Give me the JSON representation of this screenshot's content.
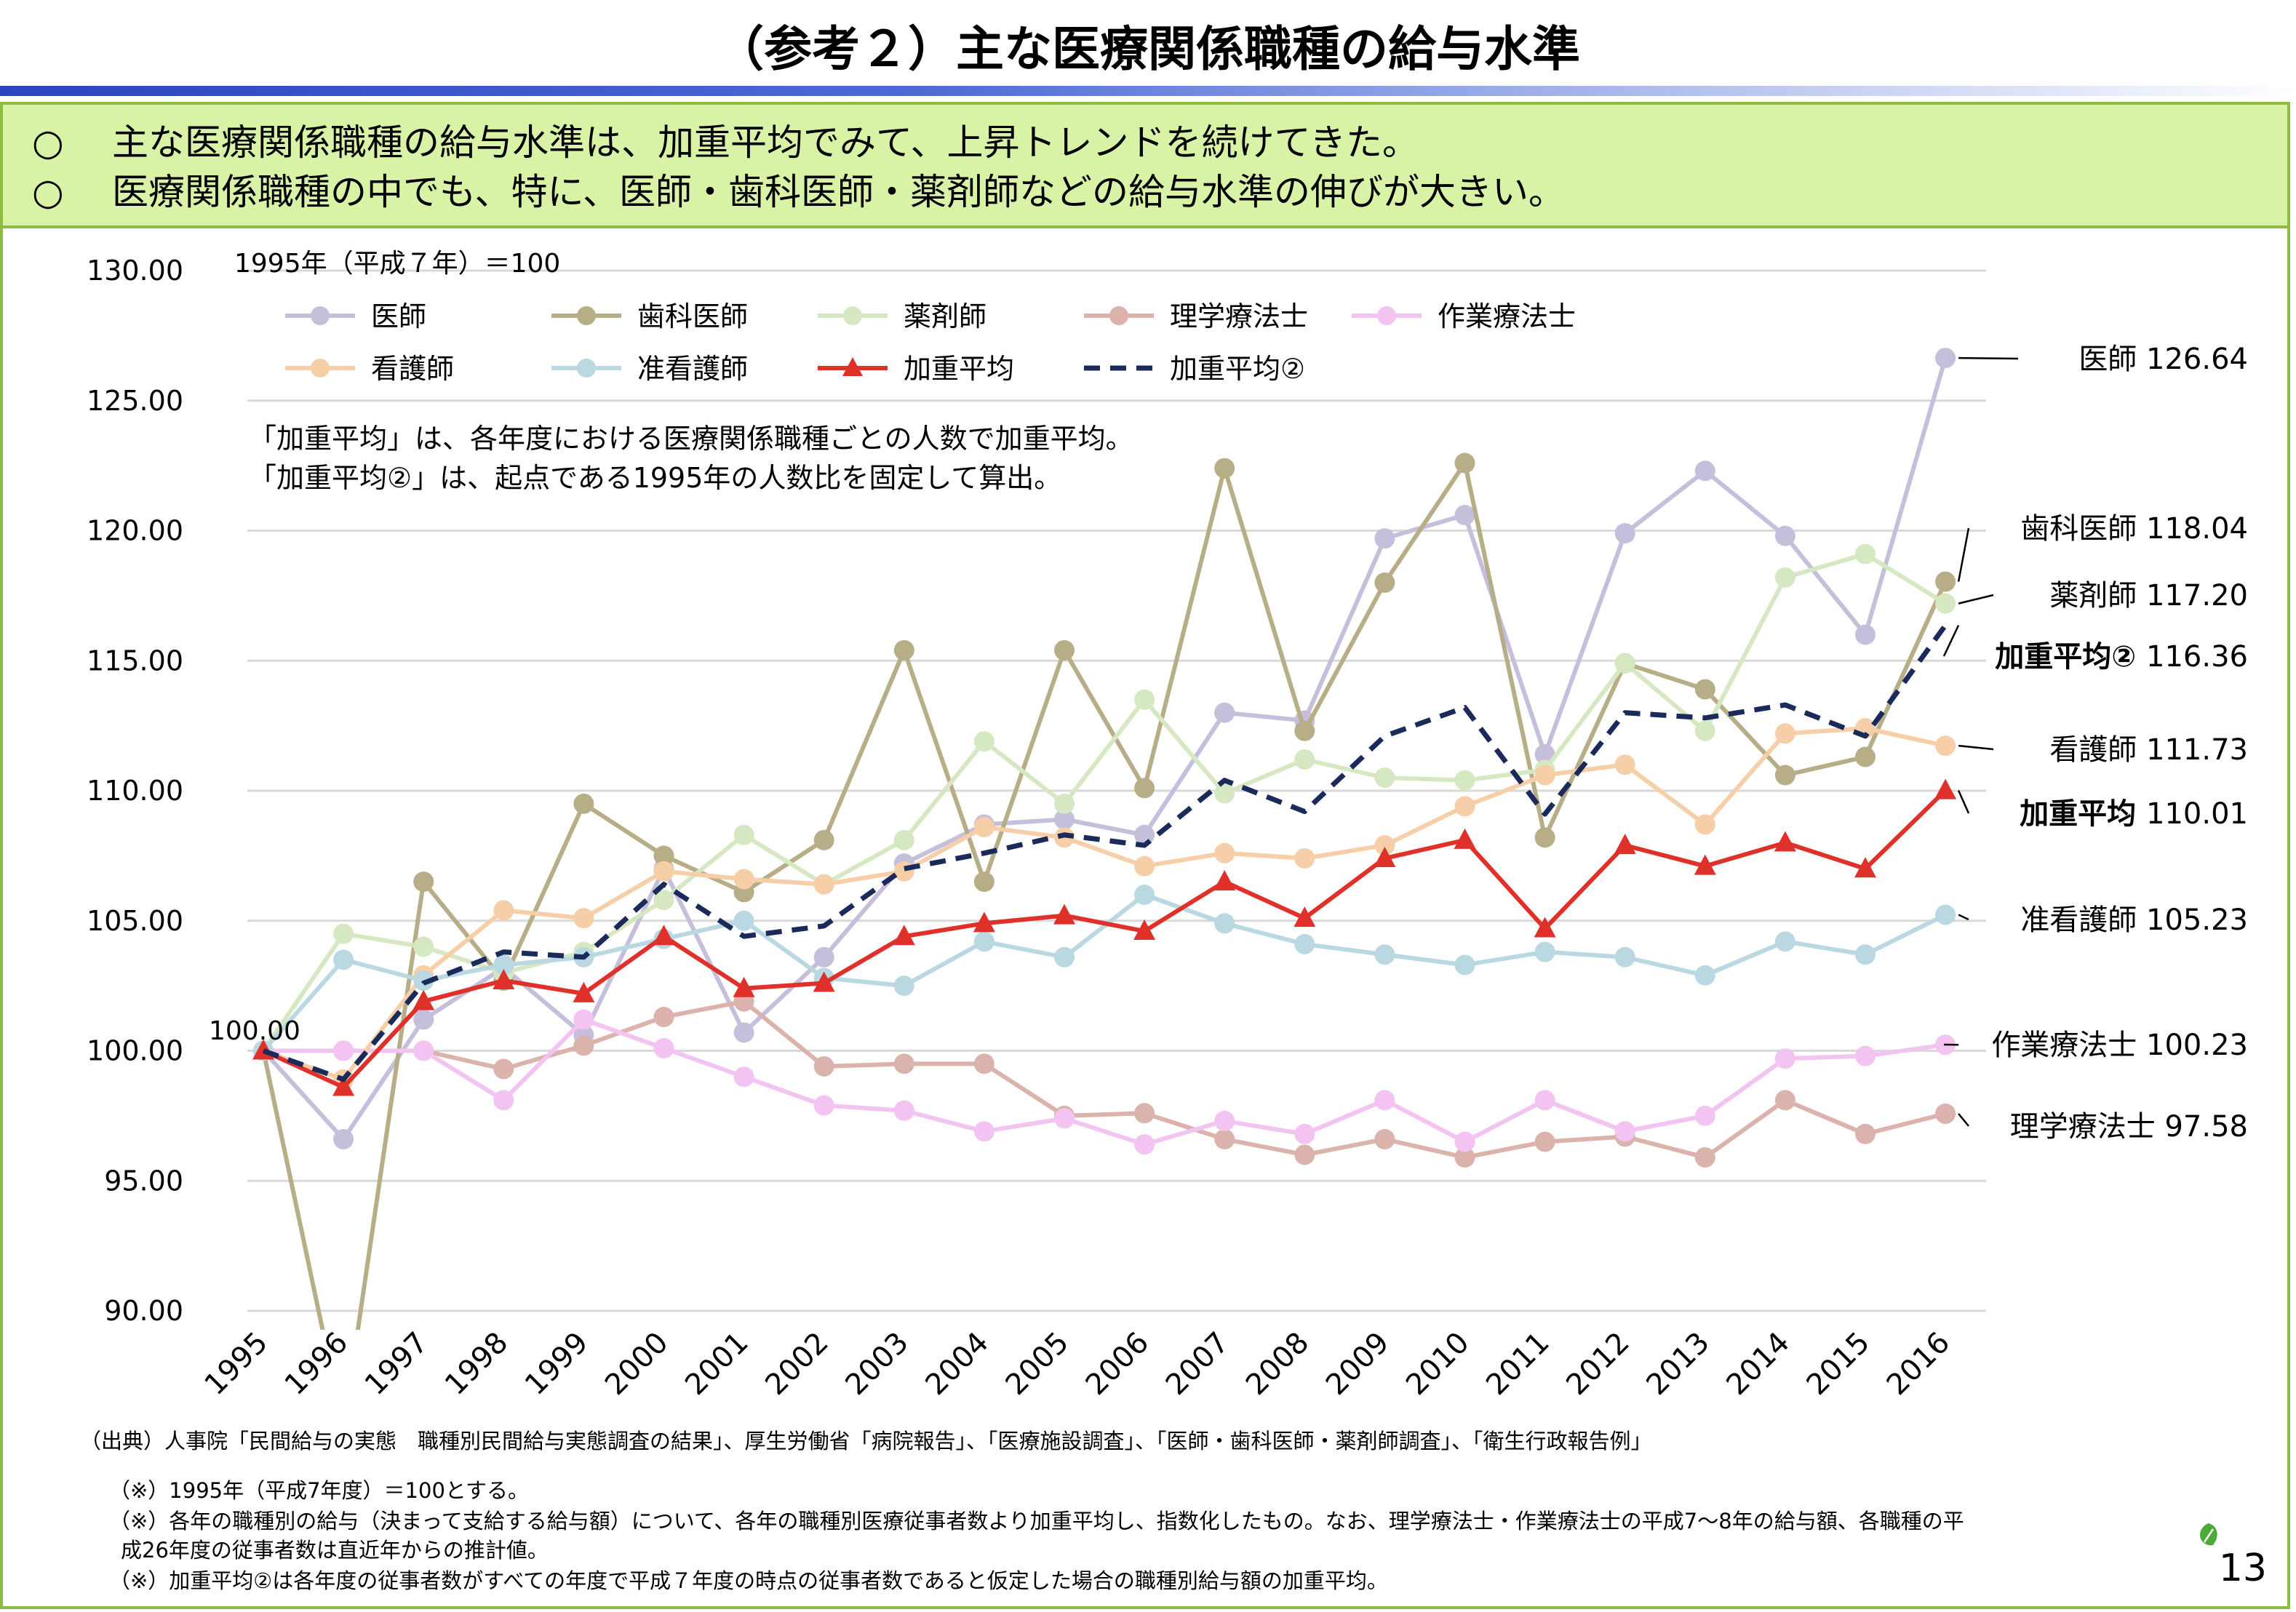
{
  "page": {
    "title": "（参考２）主な医療関係職種の給与水準",
    "bullets": [
      "主な医療関係職種の給与水準は、加重平均でみて、上昇トレンドを続けてきた。",
      "医療関係職種の中でも、特に、医師・歯科医師・薬剤師などの給与水準の伸びが大きい。"
    ],
    "bullet_mark": "○",
    "source": "（出典）人事院「民間給与の実態　職種別民間給与実態調査の結果」、厚生労働省「病院報告」、「医療施設調査」、「医師・歯科医師・薬剤師調査」、「衛生行政報告例」",
    "notes": [
      "（※）1995年（平成7年度）＝100とする。",
      "（※）各年の職種別の給与（決まって支給する給与額）について、各年の職種別医療従事者数より加重平均し、指数化したもの。なお、理学療法士・作業療法士の平成7～8年の給与額、各職種の平",
      "成26年度の従事者数は直近年からの推計値。",
      "（※）加重平均②は各年度の従事者数がすべての年度で平成７年度の時点の従事者数であると仮定した場合の職種別給与額の加重平均。"
    ],
    "page_number": "13"
  },
  "chart_data": {
    "type": "line",
    "base_note": "1995年（平成７年）＝100",
    "annotation": [
      "「加重平均」は、各年度における医療関係職種ごとの人数で加重平均。",
      "「加重平均②」は、起点である1995年の人数比を固定して算出。"
    ],
    "start_label": "100.00",
    "categories": [
      "1995",
      "1996",
      "1997",
      "1998",
      "1999",
      "2000",
      "2001",
      "2002",
      "2003",
      "2004",
      "2005",
      "2006",
      "2007",
      "2008",
      "2009",
      "2010",
      "2011",
      "2012",
      "2013",
      "2014",
      "2015",
      "2016"
    ],
    "ylim": [
      90,
      130
    ],
    "yticks": [
      "90.00",
      "95.00",
      "100.00",
      "105.00",
      "110.00",
      "115.00",
      "120.00",
      "125.00",
      "130.00"
    ],
    "grid": true,
    "legend_position": "top-left",
    "series": [
      {
        "name": "医師",
        "color": "#c6bfdc",
        "marker": "circle",
        "style": "solid",
        "values": [
          100.0,
          96.6,
          101.2,
          103.2,
          100.6,
          107.0,
          100.7,
          103.6,
          107.2,
          108.7,
          108.9,
          108.3,
          113.0,
          112.7,
          119.7,
          120.6,
          111.4,
          119.9,
          122.3,
          119.8,
          116.0,
          126.64
        ],
        "end_label": "医師 126.64",
        "end_bold": false
      },
      {
        "name": "歯科医師",
        "color": "#b7ae88",
        "marker": "circle",
        "style": "solid",
        "values": [
          100.0,
          85.5,
          106.5,
          102.7,
          109.5,
          107.5,
          106.1,
          108.1,
          115.4,
          106.5,
          115.4,
          110.1,
          122.4,
          112.3,
          118.0,
          122.6,
          108.2,
          114.9,
          113.9,
          110.6,
          111.3,
          118.04
        ],
        "end_label": "歯科医師 118.04",
        "end_bold": false
      },
      {
        "name": "薬剤師",
        "color": "#d6e8c2",
        "marker": "circle",
        "style": "solid",
        "values": [
          100.0,
          104.5,
          104.0,
          103.0,
          103.8,
          105.8,
          108.3,
          106.4,
          108.1,
          111.9,
          109.5,
          113.5,
          109.9,
          111.2,
          110.5,
          110.4,
          110.8,
          114.9,
          112.3,
          118.2,
          119.1,
          117.2
        ],
        "end_label": "薬剤師 117.20",
        "end_bold": false
      },
      {
        "name": "理学療法士",
        "color": "#dbb3ac",
        "marker": "circle",
        "style": "solid",
        "values": [
          100.0,
          100.0,
          100.0,
          99.3,
          100.2,
          101.3,
          101.9,
          99.4,
          99.5,
          99.5,
          97.5,
          97.6,
          96.6,
          96.0,
          96.6,
          95.9,
          96.5,
          96.7,
          95.9,
          98.1,
          96.8,
          97.58
        ],
        "end_label": "理学療法士 97.58",
        "end_bold": false
      },
      {
        "name": "作業療法士",
        "color": "#f3c3f1",
        "marker": "circle",
        "style": "solid",
        "values": [
          100.0,
          100.0,
          100.0,
          98.1,
          101.2,
          100.1,
          99.0,
          97.9,
          97.7,
          96.9,
          97.4,
          96.4,
          97.3,
          96.8,
          98.1,
          96.5,
          98.1,
          96.9,
          97.5,
          99.7,
          99.8,
          100.23
        ],
        "end_label": "作業療法士 100.23",
        "end_bold": false
      },
      {
        "name": "看護師",
        "color": "#f6cfa8",
        "marker": "circle",
        "style": "solid",
        "values": [
          100.0,
          98.9,
          102.9,
          105.4,
          105.1,
          106.9,
          106.6,
          106.4,
          106.9,
          108.6,
          108.2,
          107.1,
          107.6,
          107.4,
          107.9,
          109.4,
          110.6,
          111.0,
          108.7,
          112.2,
          112.4,
          111.73
        ],
        "end_label": "看護師 111.73",
        "end_bold": false
      },
      {
        "name": "准看護師",
        "color": "#bad8e2",
        "marker": "circle",
        "style": "solid",
        "values": [
          100.0,
          103.5,
          102.7,
          103.3,
          103.6,
          104.3,
          105.0,
          102.8,
          102.5,
          104.2,
          103.6,
          106.0,
          104.9,
          104.1,
          103.7,
          103.3,
          103.8,
          103.6,
          102.9,
          104.2,
          103.7,
          105.23
        ],
        "end_label": "准看護師 105.23",
        "end_bold": false
      },
      {
        "name": "加重平均",
        "color": "#e0302a",
        "marker": "triangle",
        "style": "solid",
        "values": [
          100.0,
          98.6,
          101.9,
          102.7,
          102.2,
          104.4,
          102.4,
          102.6,
          104.4,
          104.9,
          105.2,
          104.6,
          106.5,
          105.1,
          107.4,
          108.1,
          104.7,
          107.9,
          107.1,
          108.0,
          107.0,
          110.01
        ],
        "end_label": "加重平均 110.01",
        "end_bold": true
      },
      {
        "name": "加重平均②",
        "color": "#1a2a5a",
        "marker": "none",
        "style": "dashed",
        "values": [
          100.0,
          98.9,
          102.6,
          103.8,
          103.6,
          106.4,
          104.4,
          104.8,
          107.0,
          107.6,
          108.3,
          107.9,
          110.4,
          109.2,
          112.1,
          113.2,
          109.1,
          113.0,
          112.8,
          113.3,
          112.1,
          116.36
        ],
        "end_label": "加重平均② 116.36",
        "end_bold": true
      }
    ]
  }
}
